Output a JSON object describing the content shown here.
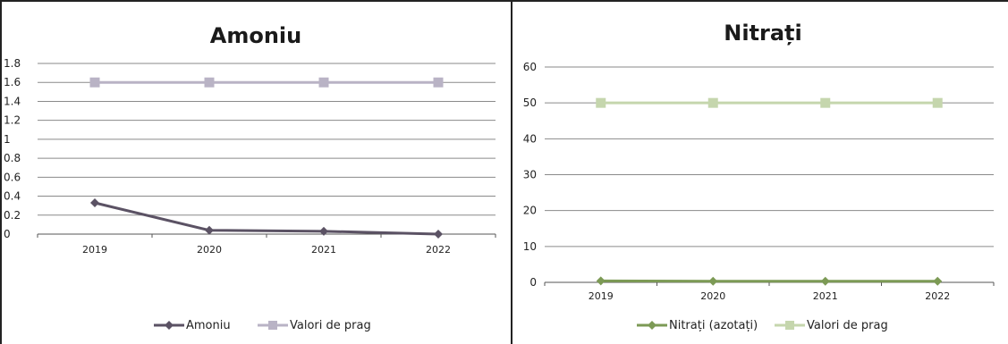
{
  "chart_data": [
    {
      "type": "line",
      "title": "Amoniu",
      "categories": [
        "2019",
        "2020",
        "2021",
        "2022"
      ],
      "y_ticks": [
        "0",
        "0.2",
        "0.4",
        "0.6",
        "0.8",
        "1",
        "1.2",
        "1.4",
        "1.6",
        "1.8"
      ],
      "ylim": [
        0,
        1.8
      ],
      "grid": true,
      "legend_position": "bottom",
      "series": [
        {
          "name": "Amoniu",
          "values": [
            0.33,
            0.04,
            0.03,
            0.0
          ],
          "color": "#5b5264",
          "marker": "diamond"
        },
        {
          "name": "Valori de prag",
          "values": [
            1.6,
            1.6,
            1.6,
            1.6
          ],
          "color": "#b9b3c5",
          "marker": "square"
        }
      ]
    },
    {
      "type": "line",
      "title": "Nitrați",
      "categories": [
        "2019",
        "2020",
        "2021",
        "2022"
      ],
      "y_ticks": [
        "0",
        "10",
        "20",
        "30",
        "40",
        "50",
        "60"
      ],
      "ylim": [
        0,
        60
      ],
      "grid": true,
      "legend_position": "bottom",
      "series": [
        {
          "name": "Nitrați (azotați)",
          "values": [
            0.4,
            0.3,
            0.3,
            0.3
          ],
          "color": "#7c9a55",
          "marker": "diamond"
        },
        {
          "name": "Valori de prag",
          "values": [
            50,
            50,
            50,
            50
          ],
          "color": "#c5d6ad",
          "marker": "square"
        }
      ]
    }
  ]
}
